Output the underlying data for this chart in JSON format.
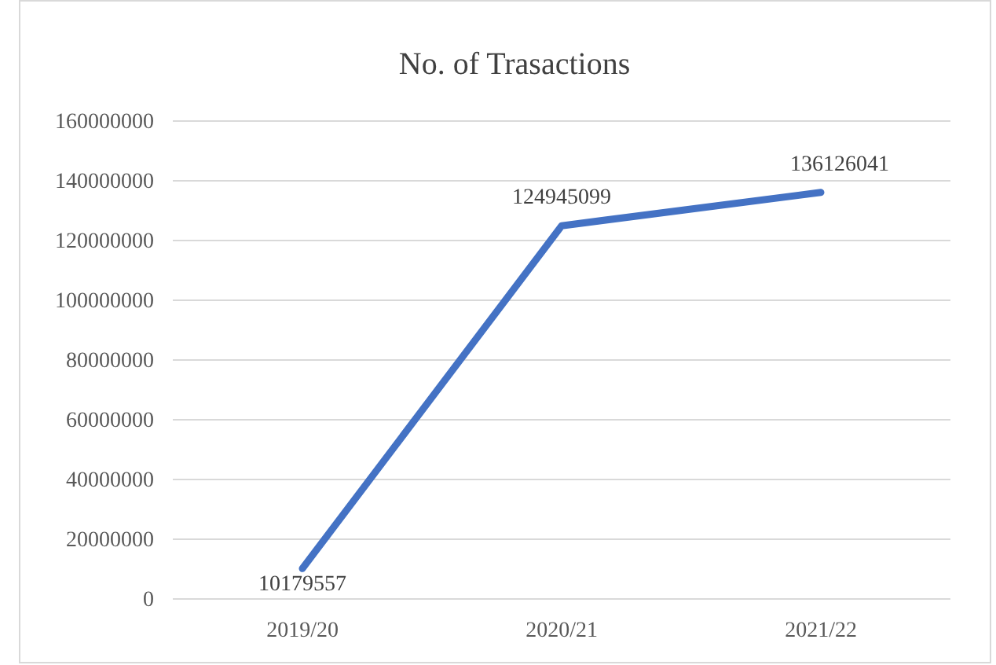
{
  "chart_data": {
    "type": "line",
    "title": "No. of Trasactions",
    "categories": [
      "2019/20",
      "2020/21",
      "2021/22"
    ],
    "series": [
      {
        "color": "#4472c4",
        "values": [
          10179557,
          124945099,
          136126041
        ]
      }
    ],
    "ylim": [
      0,
      160000000
    ],
    "yticks": [
      0,
      20000000,
      40000000,
      60000000,
      80000000,
      100000000,
      120000000,
      140000000,
      160000000
    ],
    "grid": "y",
    "data_labels": true,
    "marker": "none",
    "line_style": "solid"
  }
}
